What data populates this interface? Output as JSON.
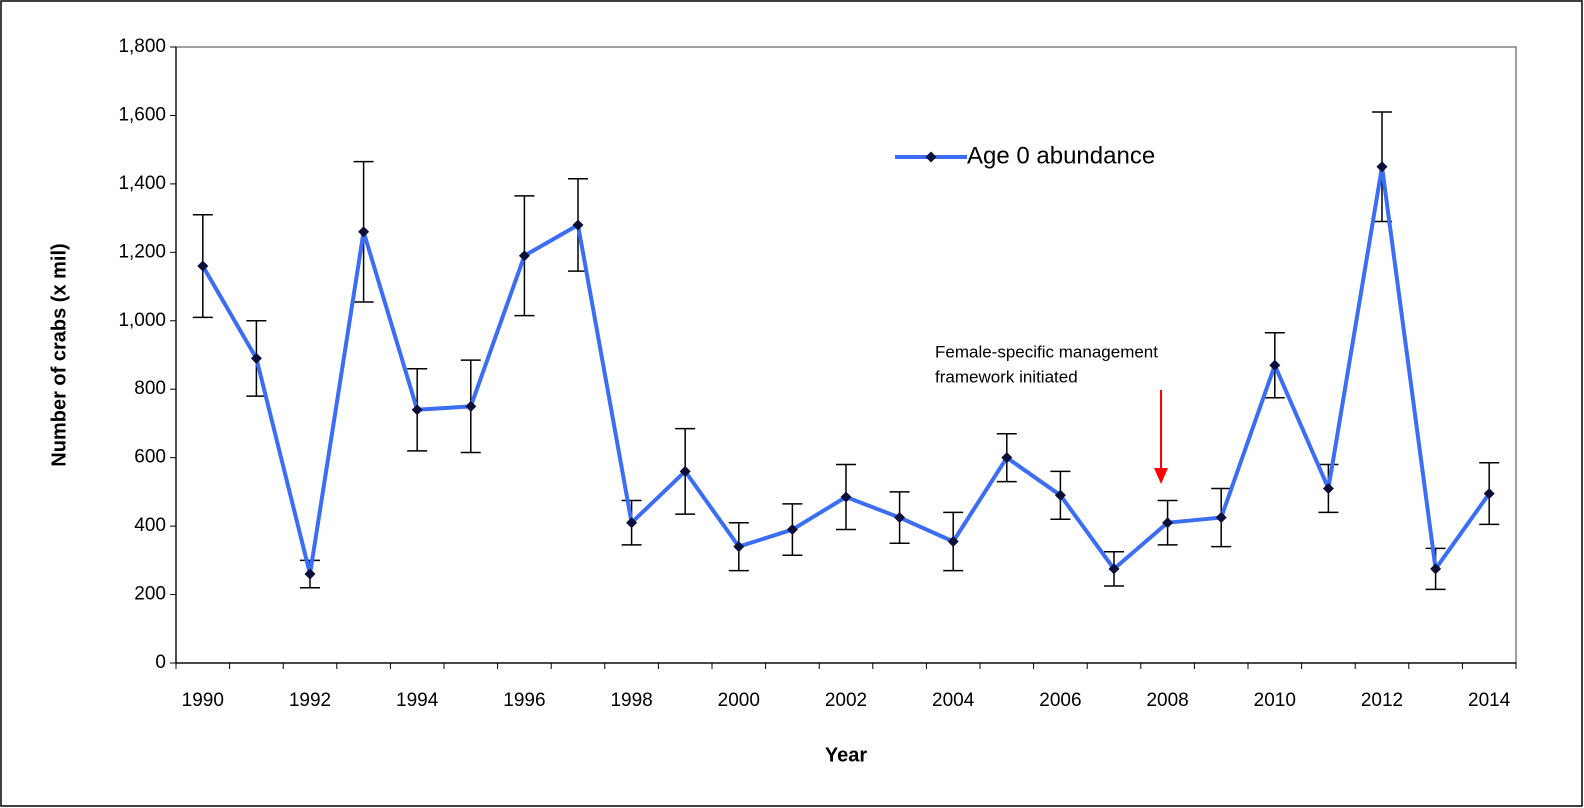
{
  "chart_data": {
    "type": "line",
    "x_label": "Year",
    "y_label": "Number of crabs (x mil)",
    "categories": [
      "1990",
      null,
      "1992",
      null,
      "1994",
      null,
      "1996",
      null,
      "1998",
      null,
      "2000",
      null,
      "2002",
      null,
      "2004",
      null,
      "2006",
      null,
      "2008",
      null,
      "2010",
      null,
      "2012",
      null,
      "2014"
    ],
    "series": [
      {
        "name": "Age 0 abundance",
        "color": "#3b6ef5",
        "marker_color": "#0b0f3a",
        "values": [
          1160,
          890,
          260,
          1260,
          740,
          750,
          1190,
          1280,
          410,
          560,
          340,
          390,
          485,
          425,
          355,
          600,
          490,
          275,
          410,
          425,
          870,
          510,
          1450,
          275,
          495
        ],
        "errors": [
          150,
          110,
          40,
          205,
          120,
          135,
          175,
          135,
          65,
          125,
          70,
          75,
          95,
          75,
          85,
          70,
          70,
          50,
          65,
          85,
          95,
          70,
          160,
          60,
          90
        ]
      }
    ],
    "ylim": [
      0,
      1800
    ],
    "yticks": [
      0,
      200,
      400,
      600,
      800,
      {
        "value": 1000,
        "label": "1,000"
      },
      {
        "value": 1200,
        "label": "1,200"
      },
      {
        "value": 1400,
        "label": "1,400"
      },
      {
        "value": 1600,
        "label": "1,600"
      },
      {
        "value": 1800,
        "label": "1,800"
      }
    ],
    "annotation": [
      "Female-specific management",
      "framework initiated"
    ],
    "annotation_color": "#ff0000",
    "legend_position": "upper right"
  }
}
